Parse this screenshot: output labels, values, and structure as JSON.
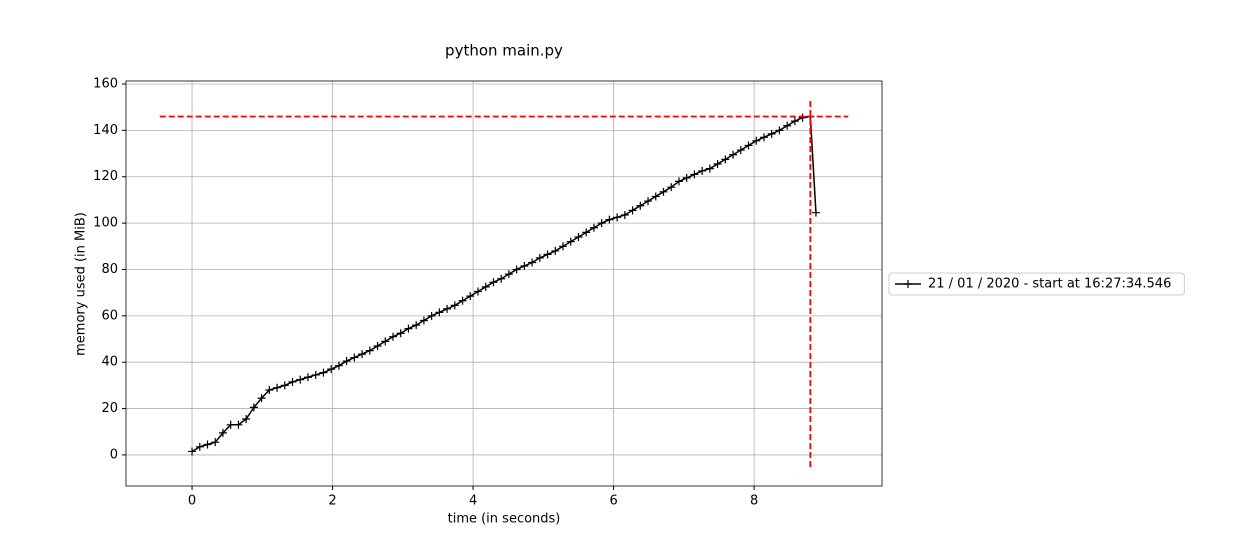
{
  "chart_data": {
    "type": "line",
    "title": "python main.py",
    "x_label": "time (in seconds)",
    "y_label": "memory used (in MiB)",
    "x": [
      0,
      0.11,
      0.22,
      0.33,
      0.44,
      0.55,
      0.66,
      0.77,
      0.88,
      0.99,
      1.1,
      1.21,
      1.32,
      1.43,
      1.54,
      1.65,
      1.76,
      1.87,
      1.98,
      2.09,
      2.2,
      2.31,
      2.42,
      2.53,
      2.64,
      2.75,
      2.86,
      2.97,
      3.08,
      3.19,
      3.3,
      3.41,
      3.52,
      3.63,
      3.74,
      3.85,
      3.96,
      4.07,
      4.18,
      4.29,
      4.4,
      4.51,
      4.62,
      4.73,
      4.84,
      4.95,
      5.06,
      5.17,
      5.28,
      5.39,
      5.5,
      5.61,
      5.72,
      5.83,
      5.94,
      6.05,
      6.16,
      6.27,
      6.38,
      6.49,
      6.6,
      6.71,
      6.82,
      6.93,
      7.04,
      7.15,
      7.26,
      7.37,
      7.48,
      7.59,
      7.7,
      7.81,
      7.92,
      8.03,
      8.14,
      8.25,
      8.36,
      8.47,
      8.58,
      8.69,
      8.8,
      8.88
    ],
    "series": [
      {
        "name": "21 / 01 / 2020 - start at 16:27:34.546",
        "color": "#000000",
        "values": [
          1.5,
          3.5,
          4.5,
          5.5,
          9.5,
          13,
          13,
          15.5,
          20.5,
          24.5,
          28,
          29,
          30,
          31.5,
          32.5,
          33.5,
          34.5,
          35.5,
          37,
          38.5,
          40.5,
          42,
          43.5,
          45,
          47,
          49,
          51,
          52.5,
          54.5,
          56,
          58,
          60,
          61.5,
          63,
          64.5,
          66.5,
          68.5,
          70.5,
          72.5,
          74.5,
          76,
          78,
          80,
          81.5,
          83,
          85,
          86.5,
          88,
          90,
          92,
          94,
          96,
          98,
          100,
          101.5,
          102.5,
          103.5,
          105.5,
          107.5,
          109.5,
          111.5,
          113.5,
          115.5,
          118,
          119.5,
          121,
          122.5,
          123.5,
          125.5,
          127.5,
          129.5,
          131.5,
          133.5,
          135.5,
          137,
          138.5,
          140,
          142,
          144,
          145.5,
          146,
          104.5
        ]
      }
    ],
    "peak_hline": {
      "y": 146,
      "xmin": -0.46,
      "xmax": 9.34,
      "color": "#ff0000"
    },
    "peak_vline": {
      "x": 8.8,
      "ymin": -5.2,
      "ymax": 153,
      "color": "#ff0000"
    },
    "xlim": [
      -0.94,
      9.82
    ],
    "ylim": [
      -13.4,
      161.3
    ],
    "xticks": [
      0,
      2,
      4,
      6,
      8
    ],
    "yticks": [
      0,
      20,
      40,
      60,
      80,
      100,
      120,
      140,
      160
    ],
    "grid": true,
    "legend": "right"
  }
}
